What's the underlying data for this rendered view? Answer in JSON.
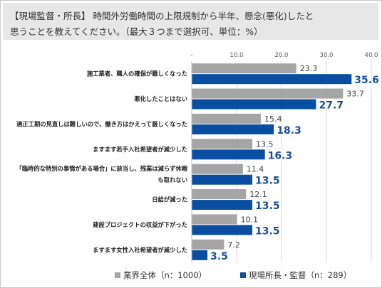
{
  "title": {
    "line1": "【現場監督・所長】 時間外労働時間の上限規制から半年、懸念(悪化)したと",
    "line2": "思うことを教えてください。（最大３つまで選択可、単位：%）"
  },
  "colors": {
    "series1": "#a5a5a5",
    "series2": "#0a4ea2",
    "series2_label": "#1a4f9c",
    "axis_text": "#595959",
    "grid": "#d9d9d9"
  },
  "chart_data": {
    "type": "bar",
    "orientation": "horizontal",
    "categories": [
      [
        "施工業者、職人の確保が難しくなった"
      ],
      [
        "悪化したことはない"
      ],
      [
        "適正工期の見直しは難しいので、働き方はかえって厳しくなった"
      ],
      [
        "ますます若手入社希望者が減少した"
      ],
      [
        "「臨時的な特別の事情がある場合」に該当し、残業は減らず休暇",
        "も取れない"
      ],
      [
        "日給が減った"
      ],
      [
        "建設プロジェクトの収益が下がった"
      ],
      [
        "ますます女性入社希望者が減少した"
      ]
    ],
    "series": [
      {
        "name": "業界全体（n：1000）",
        "values": [
          23.3,
          33.7,
          15.4,
          13.5,
          11.4,
          12.1,
          10.1,
          7.2
        ],
        "labels": [
          "23.3",
          "33.7",
          "15.4",
          "13.5",
          "11.4",
          "12.1",
          "10.1",
          "7.2"
        ]
      },
      {
        "name": "現場所長・監督（n：289）",
        "values": [
          35.6,
          27.7,
          18.3,
          16.3,
          13.5,
          13.5,
          13.5,
          3.5
        ],
        "labels": [
          "35.6",
          "27.7",
          "18.3",
          "16.3",
          "13.5",
          "13.5",
          "13.5",
          "3.5"
        ]
      }
    ],
    "xlim": [
      0,
      40
    ],
    "ticks": [
      {
        "value": 0,
        "label": "-"
      },
      {
        "value": 10,
        "label": "10.0"
      },
      {
        "value": 20,
        "label": "20.0"
      },
      {
        "value": 30,
        "label": "30.0"
      },
      {
        "value": 40,
        "label": "40.0"
      }
    ],
    "axis_position": "top",
    "grid": true,
    "legend_position": "bottom"
  }
}
